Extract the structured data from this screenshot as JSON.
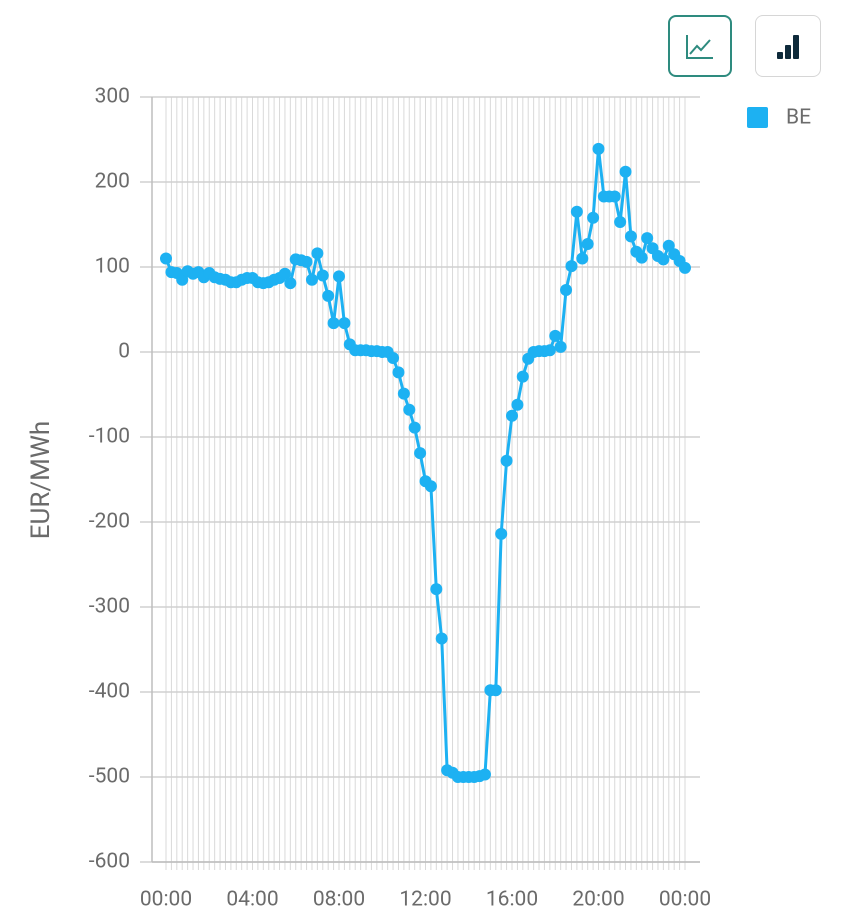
{
  "chart_data": {
    "type": "line",
    "y_label": "EUR/MWh",
    "categories": [
      "00:00",
      null,
      null,
      null,
      null,
      null,
      null,
      null,
      null,
      null,
      null,
      null,
      null,
      null,
      null,
      null,
      "04:00",
      null,
      null,
      null,
      null,
      null,
      null,
      null,
      null,
      null,
      null,
      null,
      null,
      null,
      null,
      null,
      "08:00",
      null,
      null,
      null,
      null,
      null,
      null,
      null,
      null,
      null,
      null,
      null,
      null,
      null,
      null,
      null,
      "12:00",
      null,
      null,
      null,
      null,
      null,
      null,
      null,
      null,
      null,
      null,
      null,
      null,
      null,
      null,
      null,
      "16:00",
      null,
      null,
      null,
      null,
      null,
      null,
      null,
      null,
      null,
      null,
      null,
      null,
      null,
      null,
      null,
      "20:00",
      null,
      null,
      null,
      null,
      null,
      null,
      null,
      null,
      null,
      null,
      null,
      null,
      null,
      null,
      null,
      "00:00"
    ],
    "series": [
      {
        "name": "BE",
        "color": "#1db1f2",
        "values": [
          110,
          94,
          93,
          85,
          95,
          92,
          94,
          88,
          93,
          88,
          86,
          85,
          82,
          82,
          85,
          87,
          87,
          82,
          81,
          82,
          85,
          87,
          92,
          81,
          109,
          108,
          106,
          85,
          116,
          90,
          66,
          34,
          89,
          34,
          9,
          2,
          2,
          2,
          1,
          1,
          0,
          0,
          -7,
          -24,
          -49,
          -68,
          -89,
          -119,
          -152,
          -158,
          -279,
          -337,
          -492,
          -495,
          -500,
          -500,
          -500,
          -500,
          -499,
          -497,
          -398,
          -398,
          -214,
          -128,
          -75,
          -62,
          -29,
          -8,
          0,
          1,
          1,
          2,
          19,
          6,
          73,
          101,
          165,
          110,
          127,
          158,
          239,
          183,
          183,
          183,
          153,
          212,
          136,
          118,
          111,
          134,
          122,
          113,
          109,
          125,
          115,
          107,
          99
        ]
      }
    ],
    "ylim": [
      -600,
      300
    ],
    "yticks": [
      -600,
      -500,
      -400,
      -300,
      -200,
      -100,
      0,
      100,
      200,
      300
    ],
    "grid": true,
    "legend": "right"
  }
}
